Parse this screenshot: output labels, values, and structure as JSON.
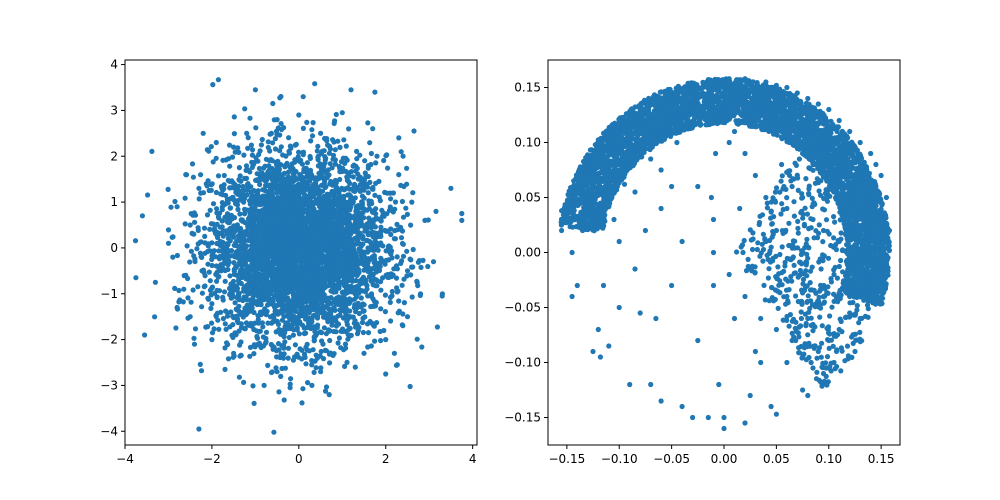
{
  "colors": {
    "points": "#1f77b4",
    "axes": "#000000",
    "background": "#ffffff"
  },
  "chart_data": [
    {
      "type": "scatter",
      "title": "",
      "xlabel": "",
      "ylabel": "",
      "xlim": [
        -4.0,
        4.1
      ],
      "ylim": [
        -4.3,
        4.1
      ],
      "xticks": [
        -4,
        -2,
        0,
        2,
        4
      ],
      "yticks": [
        -4,
        -3,
        -2,
        -1,
        0,
        1,
        2,
        3,
        4
      ],
      "xtick_labels": [
        "−4",
        "−2",
        "0",
        "2",
        "4"
      ],
      "ytick_labels": [
        "−4",
        "−3",
        "−2",
        "−1",
        "0",
        "1",
        "2",
        "3",
        "4"
      ],
      "grid": false,
      "legend": "none",
      "point_color": "#1f77b4",
      "series": [
        {
          "points": [
            [
              -1.85,
              3.67
            ],
            [
              -1.0,
              3.45
            ],
            [
              -0.6,
              3.15
            ],
            [
              0.1,
              3.3
            ],
            [
              1.2,
              3.45
            ],
            [
              1.75,
              3.4
            ],
            [
              2.65,
              2.55
            ],
            [
              3.5,
              1.3
            ],
            [
              3.75,
              0.75
            ],
            [
              3.75,
              0.6
            ],
            [
              -3.6,
              0.7
            ],
            [
              -3.75,
              -0.65
            ],
            [
              -3.55,
              -1.9
            ],
            [
              -3.3,
              -0.75
            ],
            [
              -2.3,
              -3.95
            ],
            [
              0.7,
              -3.2
            ],
            [
              2.0,
              -2.75
            ],
            [
              3.3,
              -1.05
            ],
            [
              -2.6,
              1.6
            ],
            [
              -2.8,
              0.9
            ],
            [
              2.9,
              0.6
            ],
            [
              -2.8,
              -1.3
            ],
            [
              -2.2,
              2.5
            ],
            [
              2.3,
              2.4
            ],
            [
              0.0,
              2.9
            ],
            [
              1.0,
              2.95
            ],
            [
              -0.5,
              2.8
            ],
            [
              -1.5,
              2.2
            ],
            [
              1.8,
              2.0
            ],
            [
              2.3,
              1.6
            ],
            [
              2.6,
              1.0
            ],
            [
              2.5,
              -0.5
            ],
            [
              2.5,
              -1.5
            ],
            [
              2.0,
              -2.0
            ],
            [
              1.5,
              -2.3
            ],
            [
              0.5,
              -2.7
            ],
            [
              -0.5,
              -2.7
            ],
            [
              -1.5,
              -2.3
            ],
            [
              -2.0,
              -2.0
            ],
            [
              -2.5,
              -1.5
            ],
            [
              -2.6,
              -0.6
            ],
            [
              -2.5,
              0.5
            ],
            [
              -2.3,
              1.3
            ],
            [
              -0.8,
              -3.0
            ],
            [
              0.3,
              -3.0
            ],
            [
              1.3,
              -2.6
            ],
            [
              -1.2,
              2.5
            ],
            [
              0.5,
              2.5
            ],
            [
              -3.0,
              0.1
            ],
            [
              -2.9,
              -0.2
            ],
            [
              3.1,
              -0.3
            ],
            [
              2.8,
              -1.0
            ],
            [
              -0.2,
              -3.05
            ],
            [
              1.7,
              2.6
            ],
            [
              -1.7,
              -2.65
            ],
            [
              2.2,
              -2.3
            ],
            [
              -2.4,
              -2.1
            ],
            [
              2.4,
              2.0
            ],
            [
              -1.9,
              2.3
            ],
            [
              2.2,
              0.2
            ]
          ]
        }
      ]
    },
    {
      "type": "scatter",
      "title": "",
      "xlabel": "",
      "ylabel": "",
      "xlim": [
        -0.168,
        0.168
      ],
      "ylim": [
        -0.175,
        0.175
      ],
      "xticks": [
        -0.15,
        -0.1,
        -0.05,
        0.0,
        0.05,
        0.1,
        0.15
      ],
      "yticks": [
        -0.15,
        -0.1,
        -0.05,
        0.0,
        0.05,
        0.1,
        0.15
      ],
      "xtick_labels": [
        "−0.15",
        "−0.10",
        "−0.05",
        "0.00",
        "0.05",
        "0.10",
        "0.15"
      ],
      "ytick_labels": [
        "−0.15",
        "−0.10",
        "−0.05",
        "0.00",
        "0.05",
        "0.10",
        "0.15"
      ],
      "grid": false,
      "legend": "none",
      "point_color": "#1f77b4",
      "series": [
        {
          "points": [
            [
              -0.155,
              0.038
            ],
            [
              -0.15,
              0.037
            ],
            [
              -0.155,
              0.02
            ],
            [
              -0.145,
              0.0
            ],
            [
              -0.145,
              -0.04
            ],
            [
              -0.14,
              -0.03
            ],
            [
              -0.135,
              0.02
            ],
            [
              -0.13,
              0.07
            ],
            [
              -0.125,
              0.08
            ],
            [
              -0.12,
              0.095
            ],
            [
              -0.115,
              -0.03
            ],
            [
              -0.12,
              -0.07
            ],
            [
              -0.125,
              -0.09
            ],
            [
              -0.118,
              -0.095
            ],
            [
              -0.11,
              -0.085
            ],
            [
              -0.105,
              0.075
            ],
            [
              -0.1,
              -0.05
            ],
            [
              -0.1,
              0.01
            ],
            [
              -0.095,
              0.062
            ],
            [
              -0.09,
              -0.12
            ],
            [
              -0.09,
              0.11
            ],
            [
              -0.085,
              -0.015
            ],
            [
              -0.08,
              0.09
            ],
            [
              -0.08,
              -0.055
            ],
            [
              -0.075,
              0.02
            ],
            [
              -0.07,
              0.12
            ],
            [
              -0.07,
              -0.12
            ],
            [
              -0.065,
              -0.06
            ],
            [
              -0.06,
              0.075
            ],
            [
              -0.06,
              -0.135
            ],
            [
              -0.055,
              0.14
            ],
            [
              -0.05,
              -0.03
            ],
            [
              -0.05,
              0.06
            ],
            [
              -0.045,
              0.1
            ],
            [
              -0.04,
              -0.14
            ],
            [
              -0.04,
              0.01
            ],
            [
              -0.035,
              0.148
            ],
            [
              -0.03,
              -0.15
            ],
            [
              -0.03,
              0.13
            ],
            [
              -0.025,
              -0.08
            ],
            [
              -0.025,
              0.06
            ],
            [
              -0.02,
              0.15
            ],
            [
              -0.015,
              -0.15
            ],
            [
              -0.01,
              0.03
            ],
            [
              -0.01,
              -0.03
            ],
            [
              -0.005,
              0.152
            ],
            [
              -0.005,
              -0.12
            ],
            [
              0.0,
              -0.15
            ],
            [
              0.0,
              -0.16
            ],
            [
              0.005,
              0.1
            ],
            [
              0.01,
              -0.06
            ],
            [
              0.015,
              0.04
            ],
            [
              0.02,
              -0.155
            ],
            [
              0.025,
              -0.13
            ],
            [
              0.03,
              0.15
            ],
            [
              0.035,
              -0.1
            ],
            [
              0.04,
              0.01
            ],
            [
              0.045,
              -0.14
            ],
            [
              0.05,
              -0.147
            ],
            [
              0.055,
              0.08
            ],
            [
              0.06,
              -0.04
            ],
            [
              0.065,
              0.13
            ],
            [
              0.075,
              -0.125
            ],
            [
              0.08,
              -0.13
            ],
            [
              0.085,
              -0.105
            ],
            [
              0.095,
              -0.11
            ],
            [
              0.1,
              -0.08
            ],
            [
              0.11,
              -0.07
            ],
            [
              0.12,
              -0.055
            ],
            [
              0.125,
              -0.09
            ],
            [
              0.13,
              -0.06
            ],
            [
              0.14,
              -0.04
            ],
            [
              0.15,
              -0.035
            ],
            [
              0.155,
              -0.01
            ],
            [
              0.158,
              0.02
            ],
            [
              0.155,
              0.05
            ],
            [
              0.15,
              0.07
            ],
            [
              0.145,
              0.08
            ],
            [
              0.14,
              0.09
            ],
            [
              0.13,
              0.1
            ],
            [
              0.12,
              0.11
            ],
            [
              0.11,
              0.12
            ],
            [
              0.1,
              0.13
            ],
            [
              0.09,
              0.135
            ],
            [
              0.08,
              0.14
            ],
            [
              0.07,
              0.145
            ],
            [
              0.06,
              0.15
            ],
            [
              0.05,
              0.152
            ],
            [
              0.04,
              0.155
            ],
            [
              0.02,
              0.158
            ],
            [
              0.005,
              0.158
            ],
            [
              -0.013,
              0.155
            ],
            [
              -0.002,
              0.145
            ],
            [
              0.012,
              0.14
            ],
            [
              0.025,
              0.135
            ],
            [
              0.035,
              0.13
            ],
            [
              0.045,
              0.12
            ],
            [
              0.055,
              0.11
            ],
            [
              0.065,
              0.1
            ],
            [
              0.075,
              0.09
            ],
            [
              0.085,
              0.08
            ],
            [
              0.095,
              0.07
            ],
            [
              0.105,
              0.06
            ],
            [
              0.115,
              0.05
            ],
            [
              0.125,
              0.04
            ],
            [
              0.135,
              0.03
            ],
            [
              0.145,
              0.02
            ],
            [
              0.15,
              0.0
            ],
            [
              0.145,
              -0.02
            ],
            [
              0.135,
              -0.01
            ],
            [
              0.125,
              0.0
            ],
            [
              0.11,
              0.01
            ],
            [
              0.095,
              0.02
            ],
            [
              0.085,
              0.03
            ],
            [
              0.075,
              0.05
            ],
            [
              0.065,
              0.06
            ],
            [
              0.06,
              0.04
            ],
            [
              0.05,
              0.02
            ],
            [
              0.04,
              0.05
            ],
            [
              0.03,
              0.07
            ],
            [
              0.02,
              0.09
            ],
            [
              0.01,
              0.11
            ],
            [
              0.0,
              0.12
            ],
            [
              -0.008,
              0.09
            ],
            [
              -0.012,
              0.05
            ],
            [
              -0.01,
              0.0
            ],
            [
              0.005,
              -0.02
            ],
            [
              0.02,
              -0.04
            ],
            [
              0.035,
              -0.06
            ],
            [
              0.05,
              -0.07
            ],
            [
              0.065,
              -0.08
            ],
            [
              0.08,
              -0.06
            ],
            [
              0.095,
              -0.04
            ],
            [
              0.105,
              -0.02
            ],
            [
              0.115,
              -0.03
            ],
            [
              0.1,
              0.1
            ],
            [
              0.11,
              0.09
            ],
            [
              0.12,
              0.08
            ],
            [
              0.13,
              0.07
            ],
            [
              0.14,
              0.06
            ],
            [
              0.13,
              0.05
            ],
            [
              0.12,
              0.06
            ],
            [
              0.11,
              0.07
            ],
            [
              0.1,
              0.08
            ],
            [
              0.09,
              0.09
            ],
            [
              0.08,
              0.1
            ],
            [
              0.07,
              0.11
            ],
            [
              0.06,
              0.12
            ],
            [
              0.05,
              0.13
            ],
            [
              0.04,
              0.14
            ],
            [
              -0.04,
              0.125
            ],
            [
              -0.07,
              0.085
            ],
            [
              -0.085,
              0.055
            ],
            [
              -0.06,
              0.04
            ],
            [
              -0.105,
              0.03
            ],
            [
              0.03,
              -0.09
            ],
            [
              0.06,
              -0.1
            ],
            [
              0.09,
              -0.09
            ],
            [
              0.105,
              -0.1
            ],
            [
              0.12,
              -0.04
            ]
          ]
        }
      ]
    }
  ]
}
